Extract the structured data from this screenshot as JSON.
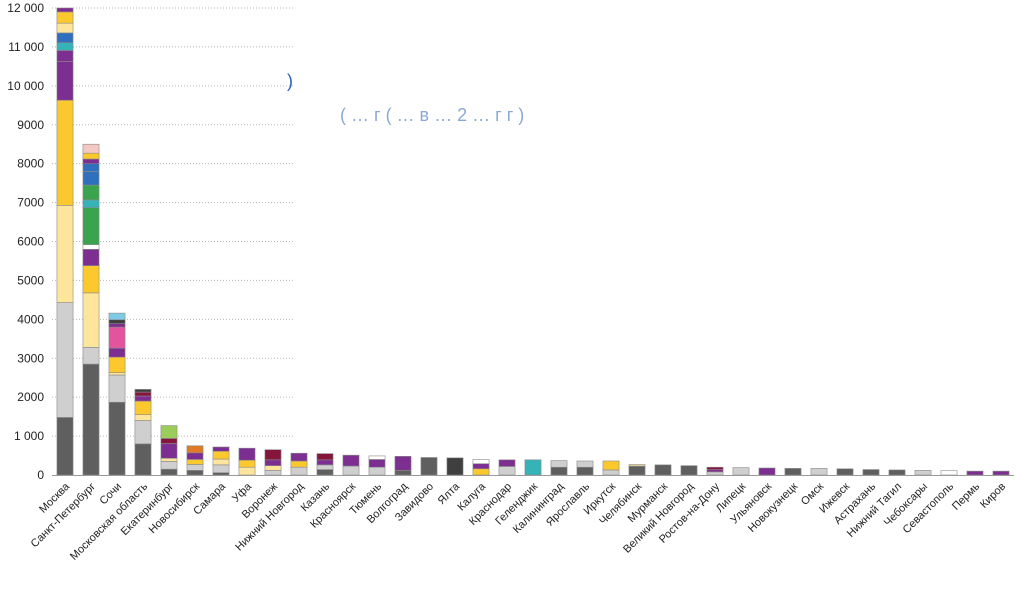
{
  "colors": {
    "dark_gray": "#5f5f5f",
    "light_gray": "#cfcfcf",
    "pale_yellow": "#fde59b",
    "yellow": "#fbc82e",
    "purple": "#7d2f91",
    "magenta": "#e2559c",
    "teal": "#35b3b6",
    "sky": "#7fcbe6",
    "blue": "#2f6fbd",
    "green": "#3aa34e",
    "light_green": "#9ccc5a",
    "maroon": "#86153b",
    "orange": "#e07a26",
    "pink": "#f4c9c4",
    "near_black": "#3f3f3f",
    "white": "#ffffff"
  },
  "overlay": {
    "line1": ")",
    "line2": "( … г  (  … в  …   2 … г г  )"
  },
  "chart_data": {
    "type": "bar",
    "stacked": true,
    "ylim": [
      0,
      12000
    ],
    "yticks": [
      0,
      1000,
      2000,
      3000,
      4000,
      5000,
      6000,
      7000,
      8000,
      9000,
      10000,
      11000,
      12000
    ],
    "ytick_labels": [
      "0",
      "1 000",
      "2000",
      "3000",
      "4000",
      "5000",
      "6000",
      "7000",
      "8000",
      "9000",
      "10 000",
      "11 000",
      "12 000"
    ],
    "grid": true,
    "legend": "none",
    "categories": [
      "Москва",
      "Санкт-Петербург",
      "Сочи",
      "Московская область",
      "Екатеринбург",
      "Новосибирск",
      "Самара",
      "Уфа",
      "Воронеж",
      "Нижний Новгород",
      "Казань",
      "Красноярск",
      "Тюмень",
      "Волгоград",
      "Завидово",
      "Ялта",
      "Калуга",
      "Краснодар",
      "Геленджик",
      "Калининград",
      "Ярославль",
      "Иркутск",
      "Челябинск",
      "Мурманск",
      "Великий Новгород",
      "Ростов-на-Дону",
      "Липецк",
      "Ульяновск",
      "Новокузнецк",
      "Омск",
      "Ижевск",
      "Астрахань",
      "Нижний Тагил",
      "Чебоксары",
      "Севастополь",
      "Пермь",
      "Киров"
    ],
    "stacks": [
      [
        {
          "v": 1480,
          "c": "dark_gray"
        },
        {
          "v": 2950,
          "c": "light_gray"
        },
        {
          "v": 2500,
          "c": "pale_yellow"
        },
        {
          "v": 2700,
          "c": "yellow"
        },
        {
          "v": 1000,
          "c": "purple"
        },
        {
          "v": 280,
          "c": "purple"
        },
        {
          "v": 200,
          "c": "teal"
        },
        {
          "v": 250,
          "c": "blue"
        },
        {
          "v": 250,
          "c": "pale_yellow"
        },
        {
          "v": 290,
          "c": "yellow"
        },
        {
          "v": 100,
          "c": "purple"
        }
      ],
      [
        {
          "v": 2850,
          "c": "dark_gray"
        },
        {
          "v": 430,
          "c": "light_gray"
        },
        {
          "v": 1400,
          "c": "pale_yellow"
        },
        {
          "v": 700,
          "c": "yellow"
        },
        {
          "v": 420,
          "c": "purple"
        },
        {
          "v": 120,
          "c": "white"
        },
        {
          "v": 950,
          "c": "green"
        },
        {
          "v": 200,
          "c": "teal"
        },
        {
          "v": 380,
          "c": "green"
        },
        {
          "v": 350,
          "c": "blue"
        },
        {
          "v": 200,
          "c": "blue"
        },
        {
          "v": 120,
          "c": "purple"
        },
        {
          "v": 150,
          "c": "yellow"
        },
        {
          "v": 230,
          "c": "pink"
        }
      ],
      [
        {
          "v": 1870,
          "c": "dark_gray"
        },
        {
          "v": 700,
          "c": "light_gray"
        },
        {
          "v": 60,
          "c": "pale_yellow"
        },
        {
          "v": 400,
          "c": "yellow"
        },
        {
          "v": 230,
          "c": "purple"
        },
        {
          "v": 540,
          "c": "magenta"
        },
        {
          "v": 90,
          "c": "purple"
        },
        {
          "v": 100,
          "c": "near_black"
        },
        {
          "v": 170,
          "c": "sky"
        }
      ],
      [
        {
          "v": 800,
          "c": "dark_gray"
        },
        {
          "v": 600,
          "c": "light_gray"
        },
        {
          "v": 150,
          "c": "pale_yellow"
        },
        {
          "v": 350,
          "c": "yellow"
        },
        {
          "v": 130,
          "c": "purple"
        },
        {
          "v": 100,
          "c": "maroon"
        },
        {
          "v": 70,
          "c": "near_black"
        }
      ],
      [
        {
          "v": 150,
          "c": "dark_gray"
        },
        {
          "v": 200,
          "c": "light_gray"
        },
        {
          "v": 80,
          "c": "pale_yellow"
        },
        {
          "v": 380,
          "c": "purple"
        },
        {
          "v": 130,
          "c": "maroon"
        },
        {
          "v": 330,
          "c": "light_green"
        }
      ],
      [
        {
          "v": 120,
          "c": "dark_gray"
        },
        {
          "v": 150,
          "c": "light_gray"
        },
        {
          "v": 130,
          "c": "yellow"
        },
        {
          "v": 170,
          "c": "purple"
        },
        {
          "v": 180,
          "c": "orange"
        }
      ],
      [
        {
          "v": 60,
          "c": "dark_gray"
        },
        {
          "v": 200,
          "c": "light_gray"
        },
        {
          "v": 150,
          "c": "pale_yellow"
        },
        {
          "v": 200,
          "c": "yellow"
        },
        {
          "v": 110,
          "c": "purple"
        }
      ],
      [
        {
          "v": 200,
          "c": "pale_yellow"
        },
        {
          "v": 180,
          "c": "yellow"
        },
        {
          "v": 310,
          "c": "purple"
        }
      ],
      [
        {
          "v": 120,
          "c": "light_gray"
        },
        {
          "v": 120,
          "c": "pale_yellow"
        },
        {
          "v": 150,
          "c": "purple"
        },
        {
          "v": 260,
          "c": "maroon"
        }
      ],
      [
        {
          "v": 200,
          "c": "light_gray"
        },
        {
          "v": 160,
          "c": "yellow"
        },
        {
          "v": 200,
          "c": "purple"
        }
      ],
      [
        {
          "v": 140,
          "c": "dark_gray"
        },
        {
          "v": 120,
          "c": "light_gray"
        },
        {
          "v": 130,
          "c": "purple"
        },
        {
          "v": 160,
          "c": "maroon"
        }
      ],
      [
        {
          "v": 230,
          "c": "light_gray"
        },
        {
          "v": 280,
          "c": "purple"
        }
      ],
      [
        {
          "v": 200,
          "c": "light_gray"
        },
        {
          "v": 200,
          "c": "purple"
        },
        {
          "v": 90,
          "c": "white"
        }
      ],
      [
        {
          "v": 120,
          "c": "dark_gray"
        },
        {
          "v": 360,
          "c": "purple"
        }
      ],
      [
        {
          "v": 450,
          "c": "dark_gray"
        }
      ],
      [
        {
          "v": 440,
          "c": "near_black"
        }
      ],
      [
        {
          "v": 160,
          "c": "yellow"
        },
        {
          "v": 130,
          "c": "purple"
        },
        {
          "v": 110,
          "c": "white"
        }
      ],
      [
        {
          "v": 220,
          "c": "light_gray"
        },
        {
          "v": 170,
          "c": "purple"
        }
      ],
      [
        {
          "v": 390,
          "c": "teal"
        }
      ],
      [
        {
          "v": 200,
          "c": "dark_gray"
        },
        {
          "v": 170,
          "c": "light_gray"
        }
      ],
      [
        {
          "v": 200,
          "c": "dark_gray"
        },
        {
          "v": 160,
          "c": "light_gray"
        }
      ],
      [
        {
          "v": 130,
          "c": "light_gray"
        },
        {
          "v": 230,
          "c": "yellow"
        }
      ],
      [
        {
          "v": 230,
          "c": "dark_gray"
        },
        {
          "v": 40,
          "c": "pale_yellow"
        }
      ],
      [
        {
          "v": 260,
          "c": "dark_gray"
        }
      ],
      [
        {
          "v": 240,
          "c": "dark_gray"
        }
      ],
      [
        {
          "v": 80,
          "c": "light_gray"
        },
        {
          "v": 60,
          "c": "purple"
        },
        {
          "v": 60,
          "c": "maroon"
        }
      ],
      [
        {
          "v": 190,
          "c": "light_gray"
        }
      ],
      [
        {
          "v": 180,
          "c": "purple"
        }
      ],
      [
        {
          "v": 170,
          "c": "dark_gray"
        }
      ],
      [
        {
          "v": 170,
          "c": "light_gray"
        }
      ],
      [
        {
          "v": 160,
          "c": "dark_gray"
        }
      ],
      [
        {
          "v": 140,
          "c": "dark_gray"
        }
      ],
      [
        {
          "v": 130,
          "c": "dark_gray"
        }
      ],
      [
        {
          "v": 120,
          "c": "light_gray"
        }
      ],
      [
        {
          "v": 110,
          "c": "white"
        }
      ],
      [
        {
          "v": 100,
          "c": "purple"
        }
      ],
      [
        {
          "v": 100,
          "c": "purple"
        }
      ]
    ]
  }
}
